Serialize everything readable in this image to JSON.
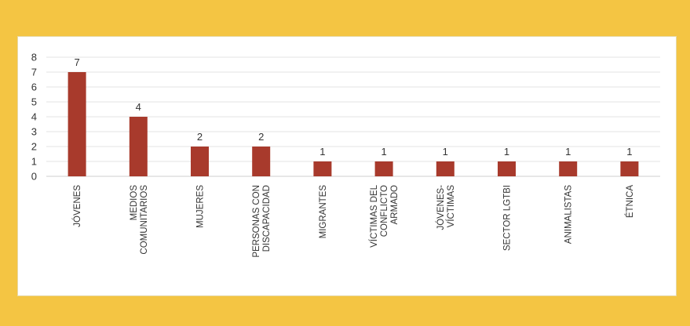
{
  "colors": {
    "background": "#f4c543",
    "panel": "#ffffff",
    "bar": "#a83a2c",
    "grid": "#e3e3e3",
    "text": "#333333"
  },
  "chart_data": {
    "type": "bar",
    "title": "",
    "xlabel": "",
    "ylabel": "",
    "y_tick_labels": [
      "0",
      "1",
      "2",
      "3",
      "4",
      "5",
      "6",
      "7",
      "8"
    ],
    "grid": true,
    "categories": [
      [
        "JÓVENES"
      ],
      [
        "MEDIOS",
        "COMUNITARIOS"
      ],
      [
        "MUJERES"
      ],
      [
        "PERSONAS CON",
        "DISCAPACIDAD"
      ],
      [
        "MIGRANTES"
      ],
      [
        "VÍCTIMAS DEL",
        "CONFLICTO",
        "ARMADO"
      ],
      [
        "JÓVENES-",
        "VÍCTIMAS"
      ],
      [
        "SECTOR LGTBI"
      ],
      [
        "ANIMALISTAS"
      ],
      [
        "ÉTNICA"
      ]
    ],
    "values": [
      7,
      4,
      2,
      2,
      1,
      1,
      1,
      1,
      1,
      1
    ],
    "data_labels": [
      "7",
      "4",
      "2",
      "2",
      "1",
      "1",
      "1",
      "1",
      "1",
      "1"
    ]
  }
}
